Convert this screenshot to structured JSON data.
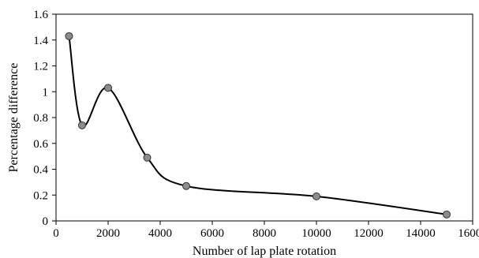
{
  "chart_data": {
    "type": "line",
    "smooth": true,
    "title": "",
    "xlabel": "Number of lap plate rotation",
    "ylabel": "Percentage difference",
    "xlim": [
      0,
      16000
    ],
    "ylim": [
      0,
      1.6
    ],
    "x_ticks": [
      0,
      2000,
      4000,
      6000,
      8000,
      10000,
      12000,
      14000,
      16000
    ],
    "y_ticks": [
      0,
      0.2,
      0.4,
      0.6,
      0.8,
      1,
      1.2,
      1.4,
      1.6
    ],
    "x_tick_labels": [
      "0",
      "2000",
      "4000",
      "6000",
      "8000",
      "10000",
      "12000",
      "14000",
      "16000"
    ],
    "y_tick_labels": [
      "0",
      "0.2",
      "0.4",
      "0.6",
      "0.8",
      "1",
      "1.2",
      "1.4",
      "1.6"
    ],
    "grid": false,
    "legend": "none",
    "colors": {
      "line": "#000000",
      "marker_fill": "#8c8c8c",
      "marker_edge": "#333333",
      "axis": "#000000"
    },
    "series": [
      {
        "x": [
          500,
          1000,
          2000,
          3500,
          5000,
          10000,
          15000
        ],
        "y": [
          1.43,
          0.74,
          1.03,
          0.49,
          0.27,
          0.19,
          0.05
        ]
      }
    ]
  }
}
